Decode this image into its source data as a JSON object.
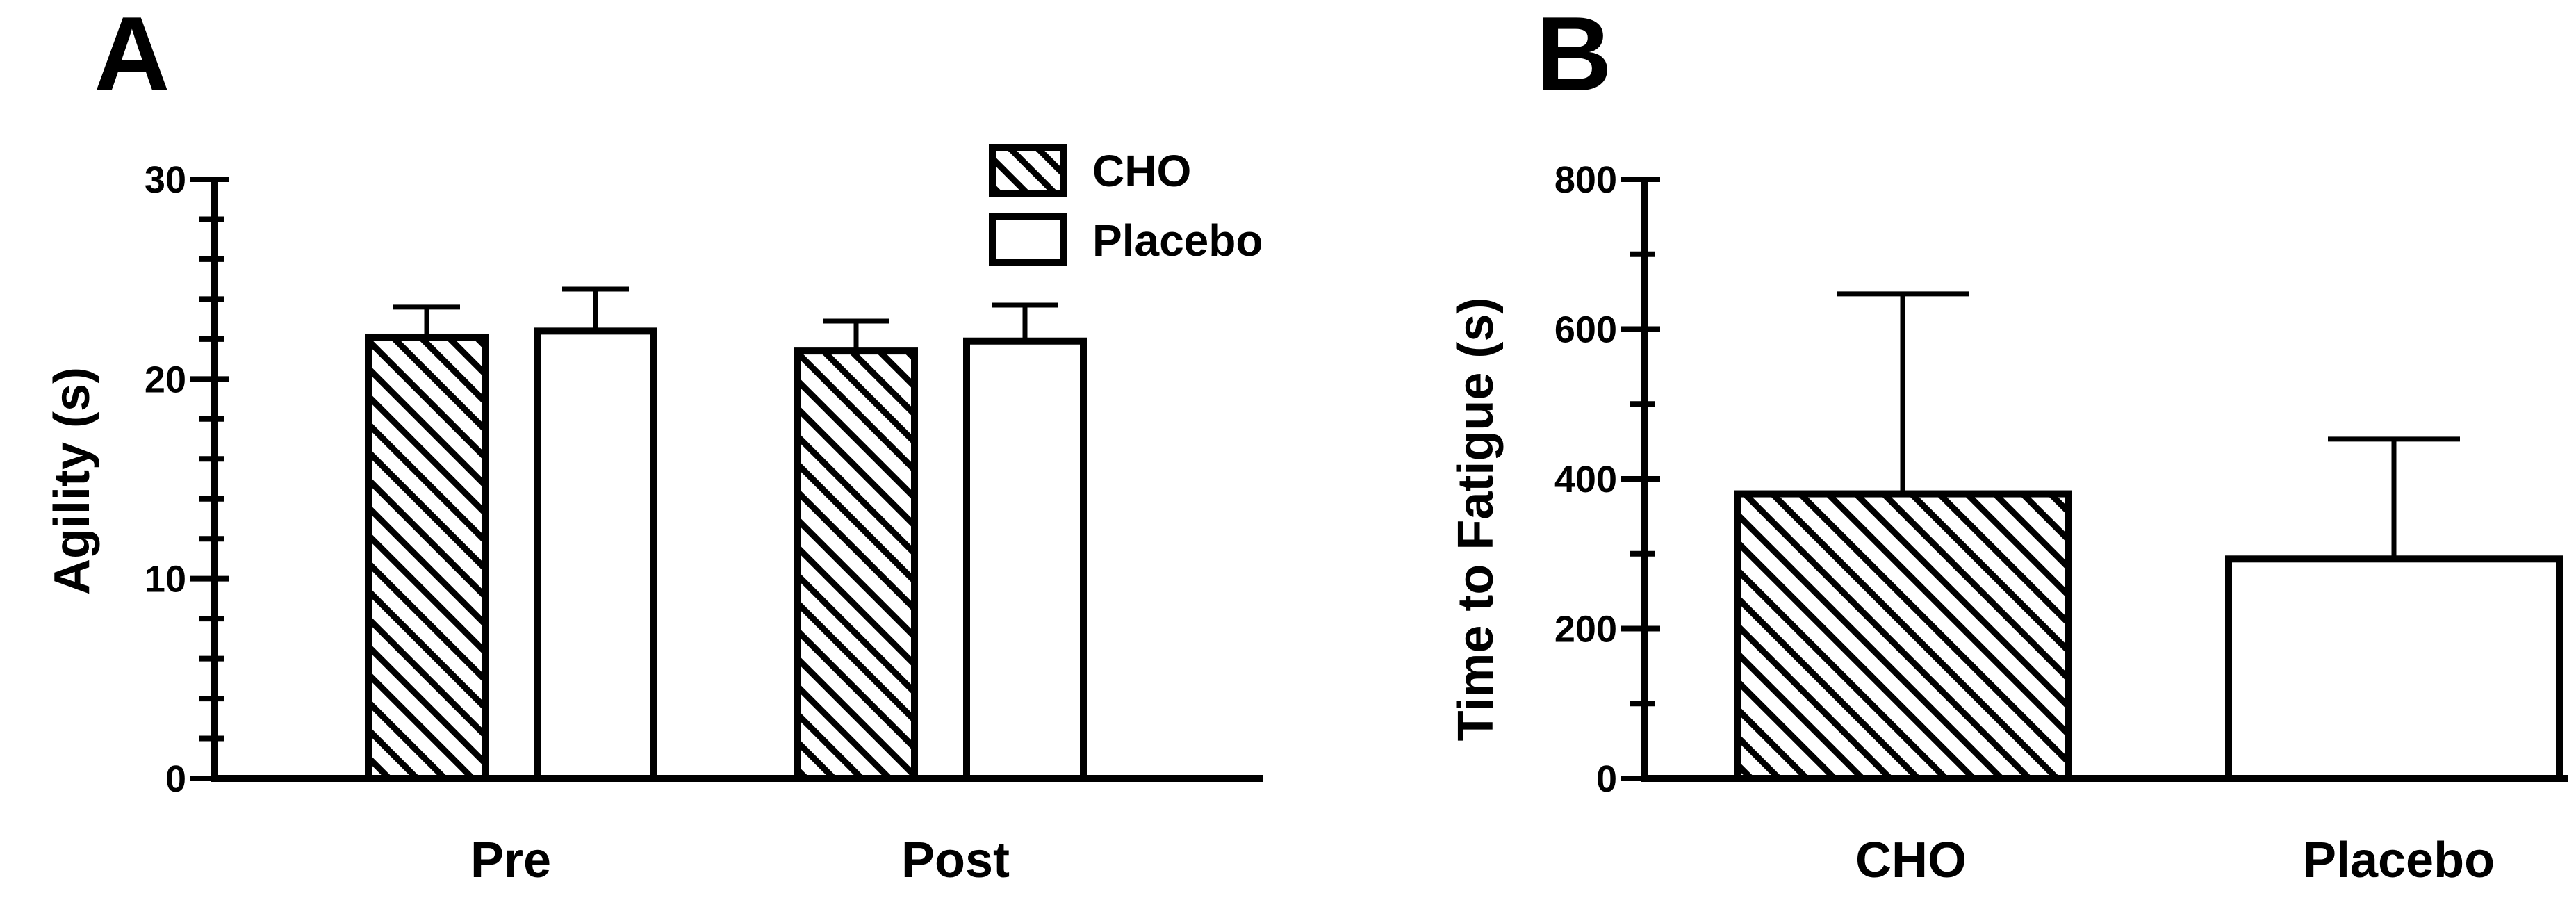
{
  "chart_data": [
    {
      "panel": "A",
      "type": "bar",
      "title": "",
      "xlabel": "",
      "ylabel": "Agility (s)",
      "ylim": [
        0,
        30
      ],
      "yticks": [
        0,
        10,
        20,
        30
      ],
      "minor_ticks": 5,
      "categories": [
        "Pre",
        "Post"
      ],
      "series": [
        {
          "name": "CHO",
          "pattern": "hatch",
          "values": [
            22.1,
            21.4
          ],
          "errors": [
            1.5,
            1.5
          ]
        },
        {
          "name": "Placebo",
          "pattern": "open",
          "values": [
            22.4,
            21.9
          ],
          "errors": [
            2.1,
            1.8
          ]
        }
      ],
      "legend": "top-right",
      "grid": false
    },
    {
      "panel": "B",
      "type": "bar",
      "title": "",
      "xlabel": "",
      "ylabel": "Time to Fatigue (s)",
      "ylim": [
        0,
        800
      ],
      "yticks": [
        0,
        200,
        400,
        600,
        800
      ],
      "minor_ticks": 2,
      "categories": [
        "CHO",
        "Placebo"
      ],
      "series": [
        {
          "name": "",
          "patterns": [
            "hatch",
            "open"
          ],
          "values": [
            380,
            293
          ],
          "errors": [
            267,
            160
          ]
        }
      ],
      "legend": "none",
      "grid": false
    }
  ],
  "colors": {
    "ink": "#000000",
    "background": "#ffffff"
  }
}
